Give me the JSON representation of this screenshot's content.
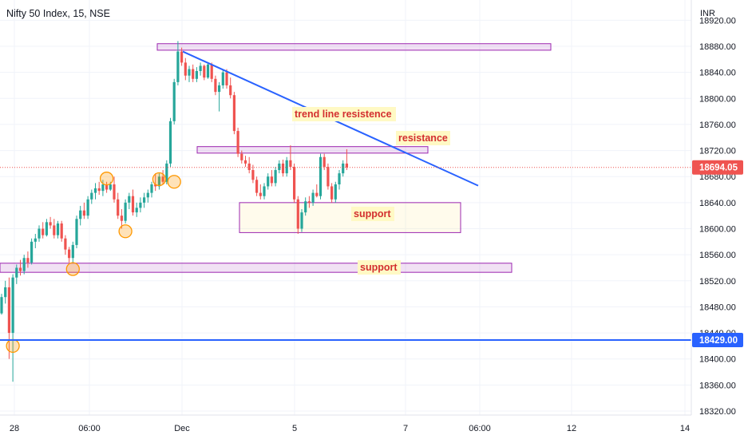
{
  "chart_data": {
    "type": "candlestick",
    "title": "Nifty 50 Index, 15, NSE",
    "currency": "INR",
    "ylim": [
      18310,
      18935
    ],
    "y_ticks": [
      18320,
      18360,
      18400,
      18440,
      18480,
      18520,
      18560,
      18600,
      18640,
      18680,
      18720,
      18760,
      18800,
      18840,
      18880,
      18920
    ],
    "x_tick_labels": [
      "28",
      "06:00",
      "Dec",
      "5",
      "7",
      "06:00",
      "12",
      "14"
    ],
    "last_price": {
      "value": 18694.05,
      "label": "18694.05",
      "color": "#ef5350"
    },
    "horizontal_line": {
      "value": 18429.0,
      "label": "18429.00",
      "color": "#2962ff"
    },
    "colors": {
      "up": "#26a69a",
      "down": "#ef5350",
      "trendline": "#2962ff",
      "zone": "#9c27b0",
      "note": "#d32f2f",
      "note_bg": "#fff9c4",
      "marker": "#ff9800"
    },
    "annotations": [
      {
        "text": "trend line resistence"
      },
      {
        "text": "resistance"
      },
      {
        "text": "support"
      },
      {
        "text": "support"
      }
    ],
    "trendline": {
      "from": 18872,
      "to": 18666
    },
    "zones": [
      {
        "low": 18874,
        "high": 18884
      },
      {
        "low": 18716,
        "high": 18726
      },
      {
        "low": 18594,
        "high": 18640
      },
      {
        "low": 18533,
        "high": 18547
      }
    ],
    "markers": [
      18420,
      18538,
      18677,
      18596,
      18676,
      18672
    ],
    "candles": [
      [
        18470,
        18500,
        18468,
        18495
      ],
      [
        18495,
        18520,
        18485,
        18510
      ],
      [
        18510,
        18525,
        18400,
        18440
      ],
      [
        18440,
        18530,
        18365,
        18525
      ],
      [
        18525,
        18545,
        18515,
        18540
      ],
      [
        18540,
        18552,
        18528,
        18535
      ],
      [
        18535,
        18560,
        18530,
        18555
      ],
      [
        18555,
        18565,
        18540,
        18548
      ],
      [
        18548,
        18585,
        18545,
        18580
      ],
      [
        18580,
        18592,
        18570,
        18585
      ],
      [
        18585,
        18605,
        18580,
        18600
      ],
      [
        18600,
        18610,
        18585,
        18590
      ],
      [
        18590,
        18615,
        18588,
        18610
      ],
      [
        18610,
        18618,
        18600,
        18605
      ],
      [
        18605,
        18615,
        18585,
        18590
      ],
      [
        18590,
        18612,
        18585,
        18608
      ],
      [
        18608,
        18612,
        18580,
        18585
      ],
      [
        18585,
        18590,
        18560,
        18568
      ],
      [
        18568,
        18572,
        18548,
        18555
      ],
      [
        18555,
        18580,
        18548,
        18575
      ],
      [
        18575,
        18620,
        18570,
        18615
      ],
      [
        18615,
        18635,
        18605,
        18628
      ],
      [
        18628,
        18640,
        18615,
        18620
      ],
      [
        18620,
        18650,
        18615,
        18645
      ],
      [
        18645,
        18660,
        18638,
        18655
      ],
      [
        18655,
        18670,
        18645,
        18662
      ],
      [
        18662,
        18672,
        18652,
        18658
      ],
      [
        18658,
        18675,
        18650,
        18668
      ],
      [
        18668,
        18672,
        18655,
        18660
      ],
      [
        18660,
        18672,
        18658,
        18668
      ],
      [
        18668,
        18680,
        18640,
        18645
      ],
      [
        18645,
        18655,
        18615,
        18620
      ],
      [
        18620,
        18630,
        18600,
        18612
      ],
      [
        18612,
        18645,
        18608,
        18640
      ],
      [
        18640,
        18655,
        18630,
        18650
      ],
      [
        18650,
        18660,
        18620,
        18625
      ],
      [
        18625,
        18640,
        18618,
        18632
      ],
      [
        18632,
        18648,
        18625,
        18640
      ],
      [
        18640,
        18655,
        18632,
        18648
      ],
      [
        18648,
        18660,
        18640,
        18655
      ],
      [
        18655,
        18672,
        18648,
        18668
      ],
      [
        18668,
        18685,
        18658,
        18665
      ],
      [
        18665,
        18685,
        18660,
        18680
      ],
      [
        18680,
        18690,
        18668,
        18672
      ],
      [
        18672,
        18705,
        18668,
        18700
      ],
      [
        18700,
        18770,
        18695,
        18765
      ],
      [
        18765,
        18830,
        18760,
        18825
      ],
      [
        18825,
        18888,
        18820,
        18872
      ],
      [
        18872,
        18878,
        18850,
        18855
      ],
      [
        18855,
        18862,
        18828,
        18835
      ],
      [
        18835,
        18850,
        18825,
        18845
      ],
      [
        18845,
        18852,
        18825,
        18830
      ],
      [
        18830,
        18848,
        18825,
        18842
      ],
      [
        18842,
        18855,
        18835,
        18850
      ],
      [
        18850,
        18852,
        18828,
        18832
      ],
      [
        18832,
        18855,
        18830,
        18852
      ],
      [
        18852,
        18855,
        18825,
        18830
      ],
      [
        18830,
        18835,
        18805,
        18810
      ],
      [
        18810,
        18825,
        18780,
        18820
      ],
      [
        18820,
        18845,
        18815,
        18840
      ],
      [
        18840,
        18845,
        18815,
        18820
      ],
      [
        18820,
        18832,
        18800,
        18805
      ],
      [
        18805,
        18810,
        18745,
        18750
      ],
      [
        18750,
        18755,
        18710,
        18715
      ],
      [
        18715,
        18720,
        18700,
        18705
      ],
      [
        18705,
        18712,
        18695,
        18700
      ],
      [
        18700,
        18710,
        18685,
        18690
      ],
      [
        18690,
        18698,
        18670,
        18675
      ],
      [
        18675,
        18680,
        18650,
        18655
      ],
      [
        18655,
        18668,
        18645,
        18650
      ],
      [
        18650,
        18670,
        18645,
        18665
      ],
      [
        18665,
        18685,
        18660,
        18680
      ],
      [
        18680,
        18690,
        18665,
        18670
      ],
      [
        18670,
        18695,
        18665,
        18690
      ],
      [
        18690,
        18705,
        18685,
        18700
      ],
      [
        18700,
        18706,
        18680,
        18685
      ],
      [
        18685,
        18710,
        18680,
        18705
      ],
      [
        18705,
        18728,
        18690,
        18695
      ],
      [
        18695,
        18700,
        18640,
        18645
      ],
      [
        18645,
        18650,
        18592,
        18600
      ],
      [
        18600,
        18630,
        18595,
        18625
      ],
      [
        18625,
        18648,
        18620,
        18642
      ],
      [
        18642,
        18650,
        18632,
        18640
      ],
      [
        18640,
        18660,
        18635,
        18655
      ],
      [
        18655,
        18668,
        18648,
        18650
      ],
      [
        18650,
        18715,
        18645,
        18710
      ],
      [
        18710,
        18715,
        18690,
        18695
      ],
      [
        18695,
        18700,
        18660,
        18665
      ],
      [
        18665,
        18670,
        18640,
        18645
      ],
      [
        18645,
        18672,
        18640,
        18668
      ],
      [
        18668,
        18690,
        18660,
        18685
      ],
      [
        18685,
        18705,
        18680,
        18700
      ],
      [
        18700,
        18722,
        18690,
        18694.05
      ]
    ]
  }
}
